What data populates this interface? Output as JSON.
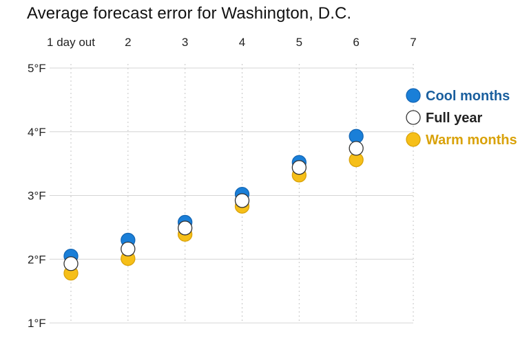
{
  "chart_data": {
    "type": "scatter",
    "title": "Average forecast error for Washington, D.C.",
    "xlabel": "",
    "ylabel": "",
    "x": [
      1,
      2,
      3,
      4,
      5,
      6
    ],
    "x_ticks": [
      {
        "value": 1,
        "label": "1 day out"
      },
      {
        "value": 2,
        "label": "2"
      },
      {
        "value": 3,
        "label": "3"
      },
      {
        "value": 4,
        "label": "4"
      },
      {
        "value": 5,
        "label": "5"
      },
      {
        "value": 6,
        "label": "6"
      },
      {
        "value": 7,
        "label": "7"
      }
    ],
    "y_ticks": [
      {
        "value": 5,
        "label": "5°F"
      },
      {
        "value": 4,
        "label": "4°F"
      },
      {
        "value": 3,
        "label": "3°F"
      },
      {
        "value": 2,
        "label": "2°F"
      },
      {
        "value": 1,
        "label": "1°F"
      }
    ],
    "xlim": [
      1,
      7
    ],
    "ylim": [
      1,
      5
    ],
    "x_axis_position": "top",
    "grid": {
      "horizontal": true,
      "vertical": "dotted"
    },
    "legend_position": "right",
    "series": [
      {
        "name": "Cool months",
        "values": [
          2.05,
          2.3,
          2.58,
          3.02,
          3.52,
          3.93
        ],
        "fill": "#1a7fd8",
        "stroke": "#1466b4",
        "label_color": "#1a5f9e"
      },
      {
        "name": "Full year",
        "values": [
          1.93,
          2.16,
          2.49,
          2.92,
          3.44,
          3.74
        ],
        "fill": "#ffffff",
        "stroke": "#333333",
        "label_color": "#222222"
      },
      {
        "name": "Warm months",
        "values": [
          1.78,
          2.01,
          2.39,
          2.83,
          3.32,
          3.56
        ],
        "fill": "#f6bf18",
        "stroke": "#d9a20a",
        "label_color": "#d9a20a"
      }
    ]
  }
}
